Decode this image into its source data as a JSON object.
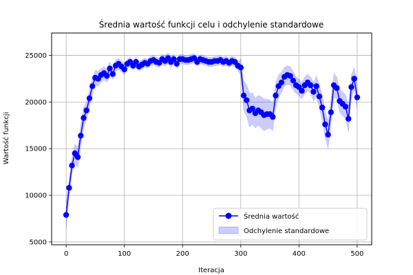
{
  "chart_data": {
    "type": "line",
    "title": "Średnia wartość funkcji celu i odchylenie standardowe",
    "xlabel": "Iteracja",
    "ylabel": "Wartość funkcji",
    "xlim": [
      -25,
      525
    ],
    "ylim": [
      4700,
      27400
    ],
    "xticks": [
      0,
      100,
      200,
      300,
      400,
      500
    ],
    "yticks": [
      5000,
      10000,
      15000,
      20000,
      25000
    ],
    "grid": true,
    "legend_position": "lower-right",
    "series": [
      {
        "name": "Średnia wartość",
        "kind": "line-with-markers",
        "color": "#0000ff",
        "x": [
          0,
          5,
          10,
          15,
          20,
          25,
          30,
          35,
          40,
          45,
          50,
          55,
          60,
          65,
          70,
          75,
          80,
          85,
          90,
          95,
          100,
          105,
          110,
          115,
          120,
          125,
          130,
          135,
          140,
          145,
          150,
          155,
          160,
          165,
          170,
          175,
          180,
          185,
          190,
          195,
          200,
          205,
          210,
          215,
          220,
          225,
          230,
          235,
          240,
          245,
          250,
          255,
          260,
          265,
          270,
          275,
          280,
          285,
          290,
          295,
          300,
          305,
          310,
          315,
          320,
          325,
          330,
          335,
          340,
          345,
          350,
          355,
          360,
          365,
          370,
          375,
          380,
          385,
          390,
          395,
          400,
          405,
          410,
          415,
          420,
          425,
          430,
          435,
          440,
          445,
          450,
          455,
          460,
          465,
          470,
          475,
          480,
          485,
          490,
          495,
          500
        ],
        "values": [
          7900,
          10800,
          13200,
          14500,
          14100,
          16400,
          18300,
          19100,
          20400,
          21700,
          22600,
          22500,
          22900,
          23100,
          22800,
          23600,
          23000,
          23900,
          24100,
          23800,
          23500,
          24100,
          24300,
          23900,
          24300,
          23800,
          24000,
          24200,
          24100,
          24400,
          24500,
          24300,
          24200,
          24600,
          24400,
          24700,
          24300,
          24600,
          24100,
          24600,
          24600,
          24500,
          24500,
          24600,
          24700,
          24300,
          24600,
          24500,
          24400,
          24300,
          24300,
          24400,
          24400,
          24500,
          24300,
          24400,
          24200,
          24400,
          24300,
          23900,
          23700,
          20700,
          20200,
          19100,
          19300,
          18800,
          19100,
          18900,
          18600,
          18700,
          18700,
          18400,
          20700,
          21700,
          22100,
          22700,
          22900,
          22800,
          22300,
          21800,
          21600,
          21200,
          21800,
          22100,
          21800,
          21100,
          21700,
          20600,
          19400,
          17600,
          16500,
          18900,
          21800,
          21500,
          20100,
          19800,
          19500,
          18200,
          21600,
          22500,
          20500
        ],
        "std": [
          1500,
          900,
          900,
          1000,
          1100,
          1200,
          1100,
          900,
          900,
          900,
          800,
          800,
          700,
          700,
          700,
          700,
          600,
          600,
          600,
          600,
          600,
          500,
          500,
          500,
          500,
          500,
          500,
          500,
          500,
          500,
          500,
          500,
          500,
          500,
          600,
          600,
          600,
          500,
          500,
          500,
          500,
          500,
          500,
          500,
          500,
          500,
          500,
          500,
          500,
          500,
          500,
          500,
          500,
          500,
          500,
          500,
          500,
          500,
          500,
          500,
          900,
          1600,
          1700,
          1800,
          1700,
          1600,
          1600,
          1700,
          1700,
          1600,
          1500,
          1500,
          1300,
          1200,
          1100,
          1000,
          1000,
          1000,
          1000,
          900,
          900,
          900,
          900,
          900,
          900,
          1000,
          1100,
          1200,
          1400,
          1400,
          1500,
          1400,
          1300,
          1200,
          1200,
          1300,
          1300,
          1400,
          1300,
          1200,
          1300
        ]
      },
      {
        "name": "Odchylenie standardowe",
        "kind": "band",
        "color": "#0000ff",
        "alpha": 0.2
      }
    ]
  }
}
